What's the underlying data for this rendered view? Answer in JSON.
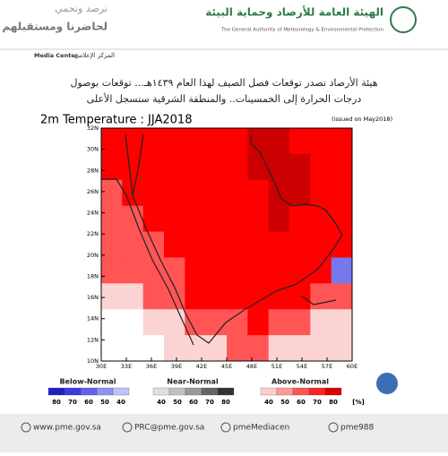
{
  "header": {
    "org_ar": "الهيئة العامة للأرصاد وحماية البيئة",
    "org_en": "The General Authority of Meteorology & Environmental Protection",
    "slogan_1": "نرصد ونحمي",
    "slogan_2": "لحاضرنا ومستقبلهم",
    "media_en": "Media Center",
    "media_ar": "المركز الإعلامي"
  },
  "headline": [
    "هيئة الأرصاد تصدر توقعات فصل الصيف لهذا العام ١٤٣٩هـ... توقعات بوصول",
    "درجات الحرارة إلى الخمسينات.. والمنطقة الشرقية ستسجل الأعلى"
  ],
  "map": {
    "title": "2m Temperature : JJA2018",
    "issued": "(issued on May2018)",
    "yticks": [
      "32N",
      "30N",
      "28N",
      "26N",
      "24N",
      "22N",
      "20N",
      "18N",
      "16N",
      "14N",
      "12N",
      "10N"
    ],
    "xticks": [
      "30E",
      "33E",
      "36E",
      "39E",
      "42E",
      "45E",
      "48E",
      "51E",
      "54E",
      "57E",
      "60E"
    ],
    "legend": [
      {
        "label": "Below-Normal",
        "ticks": [
          80,
          70,
          60,
          50,
          40
        ]
      },
      {
        "label": "Near-Normal",
        "ticks": [
          40,
          50,
          60,
          70,
          80
        ]
      },
      {
        "label": "Above-Normal",
        "ticks": [
          40,
          50,
          60,
          70,
          80
        ]
      }
    ],
    "unit": "[%]"
  },
  "footer": [
    "www.pme.gov.sa",
    "PRC@pme.gov.sa",
    "pmeMediacen",
    "pme988"
  ]
}
